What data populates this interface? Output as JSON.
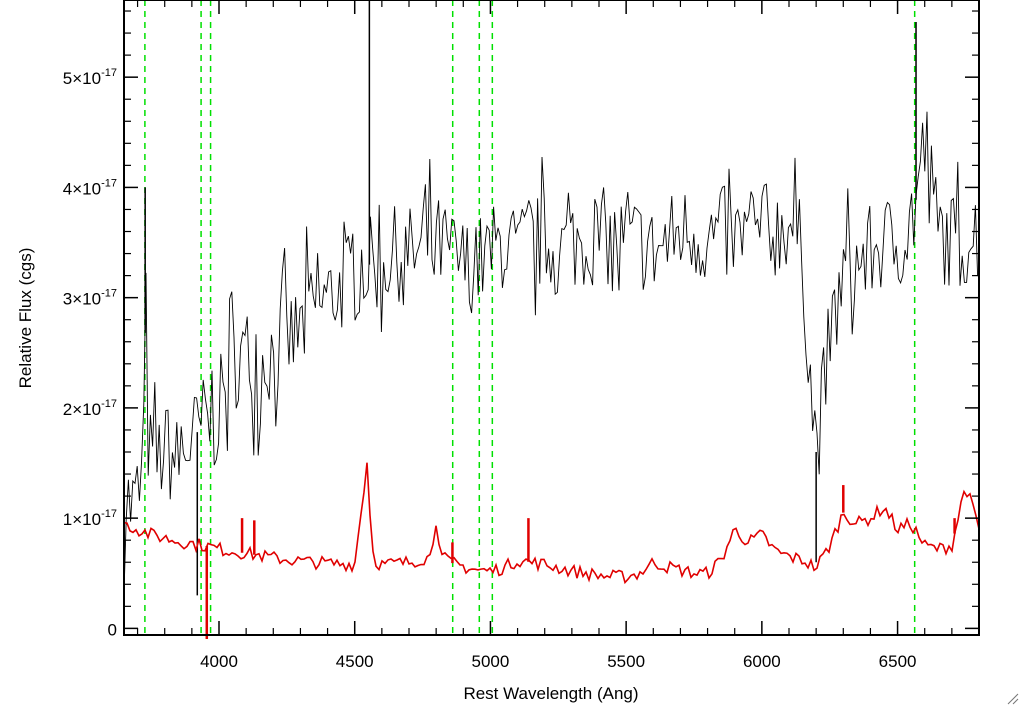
{
  "chart_data": {
    "type": "line",
    "xlabel": "Rest Wavelength (Ang)",
    "ylabel": "Relative Flux (cgs)",
    "xlim": [
      3650,
      6800
    ],
    "ylim": [
      -6e-19,
      5.7e-17
    ],
    "x_ticks": [
      {
        "value": 4000,
        "label": "4000"
      },
      {
        "value": 4500,
        "label": "4500"
      },
      {
        "value": 5000,
        "label": "5000"
      },
      {
        "value": 5500,
        "label": "5500"
      },
      {
        "value": 6000,
        "label": "6000"
      },
      {
        "value": 6500,
        "label": "6500"
      }
    ],
    "y_ticks": [
      {
        "value": 0,
        "mantissa": "0",
        "exponent": ""
      },
      {
        "value": 1e-17,
        "mantissa": "1×10",
        "exponent": "-17"
      },
      {
        "value": 2e-17,
        "mantissa": "2×10",
        "exponent": "-17"
      },
      {
        "value": 3e-17,
        "mantissa": "3×10",
        "exponent": "-17"
      },
      {
        "value": 4e-17,
        "mantissa": "4×10",
        "exponent": "-17"
      },
      {
        "value": 5e-17,
        "mantissa": "5×10",
        "exponent": "-17"
      }
    ],
    "vlines": {
      "color": "#00e000",
      "style": "dashed",
      "x": [
        3727,
        3934,
        3969,
        4861,
        4959,
        5007,
        6563
      ]
    },
    "series": [
      {
        "color": "#000000",
        "x": [
          3650,
          3680,
          3700,
          3720,
          3730,
          3740,
          3760,
          3800,
          3850,
          3900,
          3950,
          3980,
          4000,
          4050,
          4100,
          4150,
          4200,
          4250,
          4300,
          4350,
          4400,
          4450,
          4500,
          4550,
          4600,
          4650,
          4700,
          4750,
          4800,
          4850,
          4900,
          4950,
          5000,
          5050,
          5100,
          5150,
          5200,
          5250,
          5300,
          5350,
          5400,
          5450,
          5500,
          5550,
          5600,
          5650,
          5700,
          5750,
          5800,
          5850,
          5900,
          5950,
          6000,
          6050,
          6100,
          6150,
          6180,
          6200,
          6220,
          6250,
          6300,
          6350,
          6400,
          6450,
          6500,
          6550,
          6600,
          6650,
          6700,
          6750,
          6800
        ],
        "y": [
          1.2e-17,
          1.1e-17,
          1.2e-17,
          1.4e-17,
          3e-17,
          1.6e-17,
          1.5e-17,
          1.6e-17,
          1.5e-17,
          1.7e-17,
          1.9e-17,
          1.8e-17,
          2e-17,
          2.4e-17,
          2.5e-17,
          2.4e-17,
          2.5e-17,
          2.6e-17,
          2.7e-17,
          2.9e-17,
          3e-17,
          3.1e-17,
          3.2e-17,
          3.3e-17,
          3.3e-17,
          3.4e-17,
          3.4e-17,
          3.4e-17,
          3.5e-17,
          3.4e-17,
          3.3e-17,
          3.3e-17,
          3.4e-17,
          3.5e-17,
          3.4e-17,
          3.5e-17,
          3.5e-17,
          3.4e-17,
          3.5e-17,
          3.5e-17,
          3.6e-17,
          3.5e-17,
          3.5e-17,
          3.5e-17,
          3.4e-17,
          3.5e-17,
          3.6e-17,
          3.6e-17,
          3.5e-17,
          3.6e-17,
          3.5e-17,
          3.6e-17,
          3.6e-17,
          3.6e-17,
          3.7e-17,
          3.4e-17,
          2.2e-17,
          1.6e-17,
          2e-17,
          2.6e-17,
          3.2e-17,
          3.3e-17,
          3.4e-17,
          3.5e-17,
          3.5e-17,
          3.6e-17,
          4.4e-17,
          3.6e-17,
          3.5e-17,
          3.5e-17,
          3.6e-17
        ],
        "spikes": [
          [
            3728,
            4e-17
          ],
          [
            4554,
            5.7e-17
          ],
          [
            6568,
            5.5e-17
          ],
          [
            3920,
            3e-18
          ],
          [
            6200,
            6e-18
          ]
        ]
      },
      {
        "color": "#e00000",
        "x": [
          3650,
          3700,
          3750,
          3800,
          3850,
          3900,
          3950,
          4000,
          4100,
          4200,
          4300,
          4400,
          4500,
          4550,
          4560,
          4580,
          4600,
          4700,
          4780,
          4800,
          4820,
          4850,
          4900,
          4950,
          5000,
          5050,
          5100,
          5150,
          5200,
          5250,
          5300,
          5350,
          5400,
          5450,
          5500,
          5550,
          5600,
          5650,
          5700,
          5750,
          5800,
          5850,
          5900,
          5950,
          6000,
          6050,
          6100,
          6150,
          6200,
          6250,
          6300,
          6350,
          6400,
          6450,
          6500,
          6550,
          6600,
          6650,
          6700,
          6750,
          6800
        ],
        "y": [
          9.5e-18,
          9e-18,
          8.5e-18,
          8.2e-18,
          7.9e-18,
          7.7e-18,
          7.5e-18,
          7.2e-18,
          6.8e-18,
          6.4e-18,
          6.1e-18,
          5.9e-18,
          5.8e-18,
          1.6e-17,
          7.5e-18,
          6e-18,
          5.8e-18,
          6e-18,
          6.5e-18,
          1e-17,
          6.5e-18,
          6e-18,
          5.6e-18,
          5.3e-18,
          5.2e-18,
          5.5e-18,
          6.2e-18,
          6e-18,
          5.8e-18,
          5.5e-18,
          5.2e-18,
          5e-18,
          4.8e-18,
          4.7e-18,
          4.7e-18,
          5e-18,
          6e-18,
          5.6e-18,
          5.3e-18,
          5e-18,
          5e-18,
          6.2e-18,
          9e-18,
          7.8e-18,
          8.5e-18,
          7e-18,
          6.5e-18,
          6.2e-18,
          5.5e-18,
          7.5e-18,
          1.05e-17,
          9.5e-18,
          1e-17,
          1.1e-17,
          9e-18,
          9.5e-18,
          7.5e-18,
          7.2e-18,
          7.5e-18,
          1.3e-17,
          9e-18
        ],
        "spikes": [
          [
            3955,
            -1e-18
          ],
          [
            4085,
            1e-17
          ],
          [
            4130,
            9.8e-18
          ],
          [
            4860,
            7.8e-18
          ],
          [
            5140,
            1e-17
          ],
          [
            6300,
            1.3e-17
          ],
          [
            6710,
            1e-17
          ]
        ]
      }
    ]
  }
}
